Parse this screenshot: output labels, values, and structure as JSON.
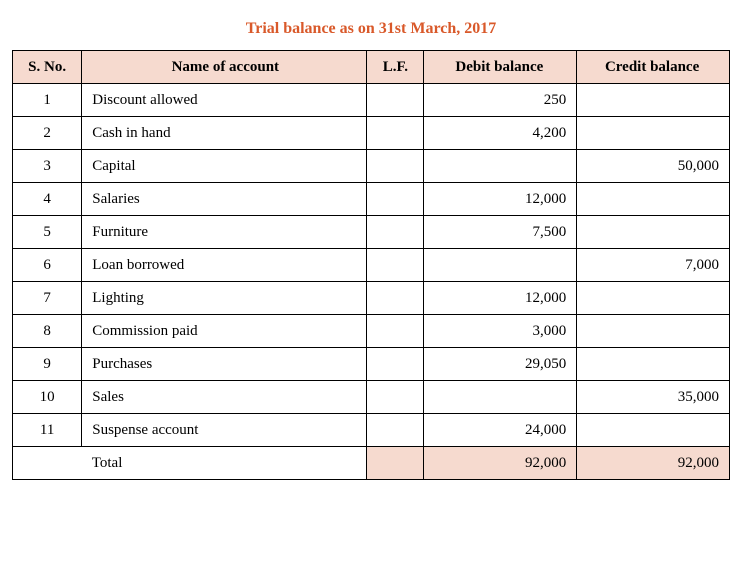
{
  "title": "Trial balance as on 31st March, 2017",
  "title_color": "#d9592a",
  "header_bg": "#f6dacf",
  "total_bg": "#f6dacf",
  "border_color": "#000000",
  "text_color": "#000000",
  "columns": {
    "sno": "S. No.",
    "name": "Name of account",
    "lf": "L.F.",
    "debit": "Debit balance",
    "credit": "Credit balance"
  },
  "rows": [
    {
      "sno": "1",
      "name": "Discount allowed",
      "lf": "",
      "debit": "250",
      "credit": ""
    },
    {
      "sno": "2",
      "name": "Cash in hand",
      "lf": "",
      "debit": "4,200",
      "credit": ""
    },
    {
      "sno": "3",
      "name": "Capital",
      "lf": "",
      "debit": "",
      "credit": "50,000"
    },
    {
      "sno": "4",
      "name": "Salaries",
      "lf": "",
      "debit": "12,000",
      "credit": ""
    },
    {
      "sno": "5",
      "name": "Furniture",
      "lf": "",
      "debit": "7,500",
      "credit": ""
    },
    {
      "sno": "6",
      "name": "Loan borrowed",
      "lf": "",
      "debit": "",
      "credit": "7,000"
    },
    {
      "sno": "7",
      "name": "Lighting",
      "lf": "",
      "debit": "12,000",
      "credit": ""
    },
    {
      "sno": "8",
      "name": "Commission paid",
      "lf": "",
      "debit": "3,000",
      "credit": ""
    },
    {
      "sno": "9",
      "name": "Purchases",
      "lf": "",
      "debit": "29,050",
      "credit": ""
    },
    {
      "sno": "10",
      "name": "Sales",
      "lf": "",
      "debit": "",
      "credit": "35,000"
    },
    {
      "sno": "11",
      "name": "Suspense account",
      "lf": "",
      "debit": "24,000",
      "credit": ""
    }
  ],
  "total": {
    "label": "Total",
    "debit": "92,000",
    "credit": "92,000"
  }
}
